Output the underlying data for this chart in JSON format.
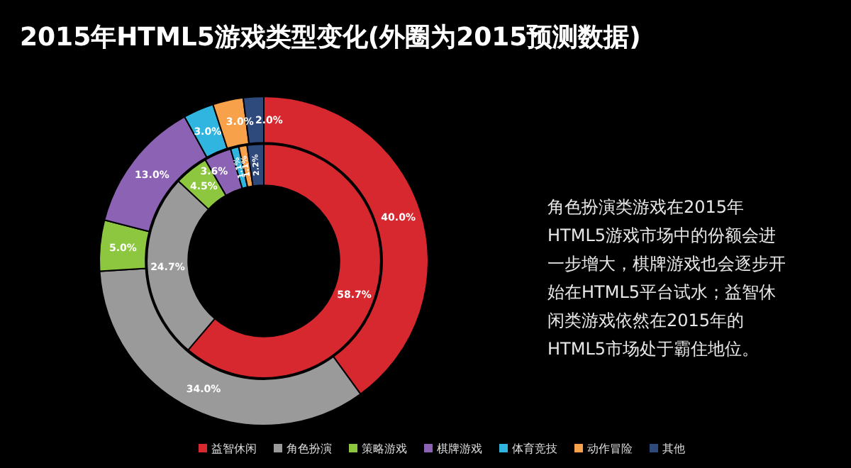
{
  "chart_data": {
    "type": "donut",
    "title": "2015年HTML5游戏类型变化(外圈为2015预测数据)",
    "categories": [
      "益智休闲",
      "角色扮演",
      "策略游戏",
      "棋牌游戏",
      "体育竞技",
      "动作冒险",
      "其他"
    ],
    "colors": [
      "#d7282f",
      "#9a9a9a",
      "#8dc63f",
      "#8b62b4",
      "#2fb5e0",
      "#f7a24a",
      "#2e4a7d"
    ],
    "series": [
      {
        "values": [
          58.7,
          24.7,
          4.5,
          3.6,
          1.1,
          1.1,
          2.2
        ],
        "value_labels": [
          "58.7%",
          "24.7%",
          "4.5%",
          "3.6%",
          "1.1%",
          "1.1%",
          "2.2%"
        ]
      },
      {
        "values": [
          40.0,
          34.0,
          5.0,
          13.0,
          3.0,
          3.0,
          2.0
        ],
        "value_labels": [
          "40.0%",
          "34.0%",
          "5.0%",
          "13.0%",
          "3.0%",
          "3.0%",
          "2.0%"
        ]
      }
    ],
    "legend": "bottom",
    "annotations": [
      "角色扮演类游戏在2015年HTML5游戏市场中的份额会进一步增大，棋牌游戏也会逐步开始在HTML5平台试水；益智休闲类游戏依然在2015年的HTML5市场处于霸住地位。"
    ]
  }
}
